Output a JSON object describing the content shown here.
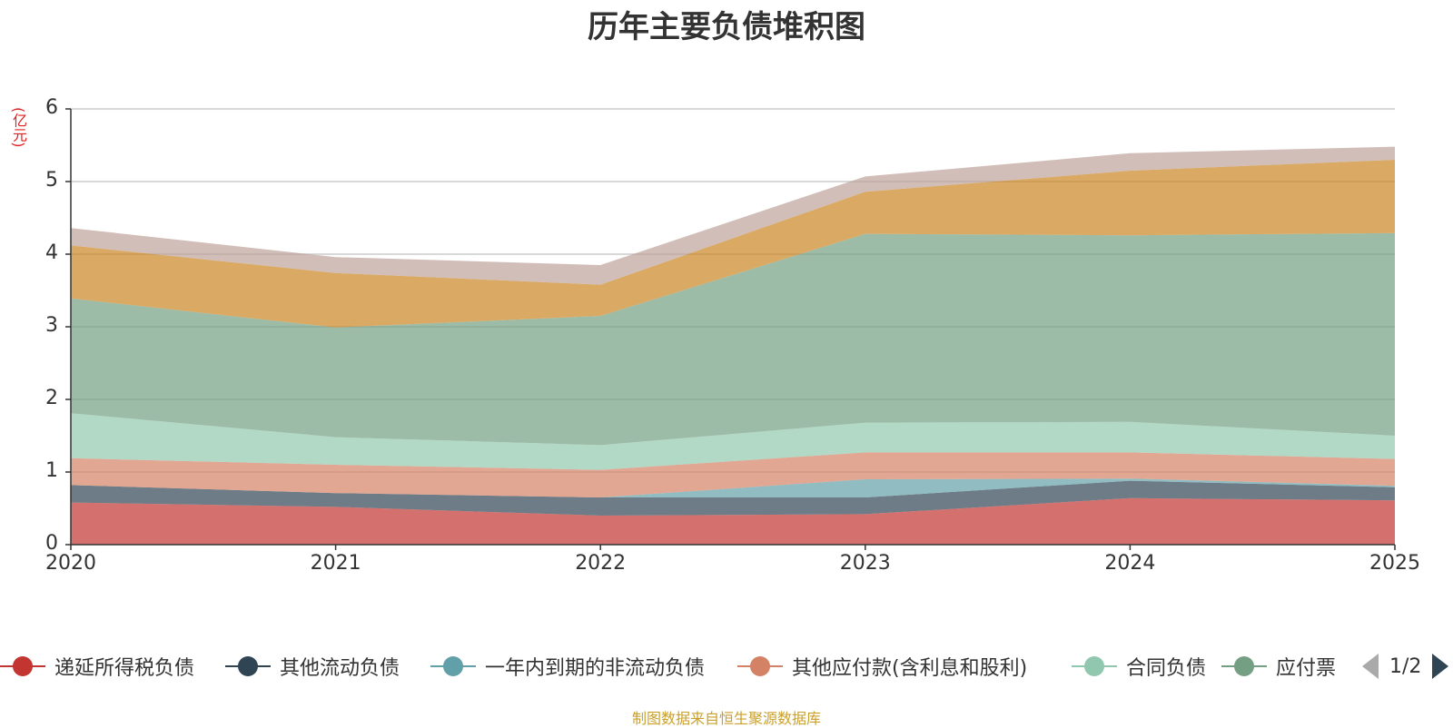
{
  "chart_data": {
    "type": "area",
    "stacked": true,
    "title": "历年主要负债堆积图",
    "ylabel": "(亿元)",
    "xlabel": "",
    "ylim": [
      0,
      6
    ],
    "yticks": [
      0,
      1,
      2,
      3,
      4,
      5,
      6
    ],
    "categories": [
      "2020",
      "2021",
      "2022",
      "2023",
      "2024",
      "2025"
    ],
    "grid": true,
    "legend_position": "bottom",
    "series": [
      {
        "name": "递延所得税负债",
        "color": "#c23531",
        "values": [
          0.58,
          0.52,
          0.4,
          0.42,
          0.64,
          0.61
        ]
      },
      {
        "name": "其他流动负债",
        "color": "#2f4554",
        "values": [
          0.24,
          0.19,
          0.25,
          0.23,
          0.24,
          0.18
        ]
      },
      {
        "name": "一年内到期的非流动负债",
        "color": "#61a0a8",
        "values": [
          0.0,
          0.0,
          0.0,
          0.25,
          0.03,
          0.02
        ]
      },
      {
        "name": "其他应付款(含利息和股利)",
        "color": "#d48265",
        "values": [
          0.37,
          0.39,
          0.38,
          0.37,
          0.36,
          0.37
        ]
      },
      {
        "name": "合同负债",
        "color": "#91c7ae",
        "values": [
          0.62,
          0.38,
          0.34,
          0.41,
          0.42,
          0.32
        ]
      },
      {
        "name": "应付票据",
        "color": "#749f83",
        "values": [
          1.58,
          1.51,
          1.78,
          2.6,
          2.57,
          2.79
        ]
      },
      {
        "name": "",
        "color": "#ca8622",
        "values": [
          0.73,
          0.75,
          0.43,
          0.58,
          0.89,
          1.01
        ]
      },
      {
        "name": "",
        "color": "#bda29a",
        "values": [
          0.24,
          0.22,
          0.27,
          0.21,
          0.24,
          0.18
        ]
      }
    ]
  },
  "legend": {
    "page": "1/2",
    "visible_last_label": "应付票"
  },
  "source_note": "制图数据来自恒生聚源数据库"
}
